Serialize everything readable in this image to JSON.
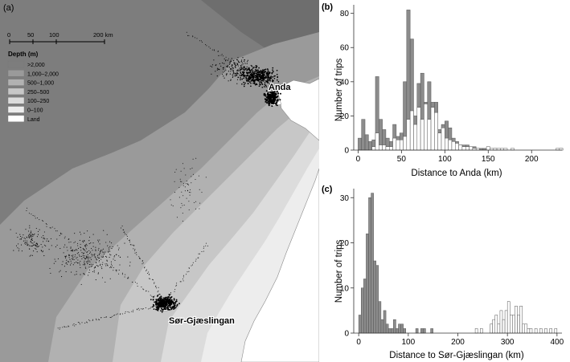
{
  "map": {
    "panel_label": "(a)",
    "scale_ticks": [
      "0",
      "50",
      "100",
      "200 km"
    ],
    "legend_title": "Depth (m)",
    "legend": [
      {
        "label": ">2,000",
        "color": "#7d7d7d"
      },
      {
        "label": "1,000–2,000",
        "color": "#9a9a9a"
      },
      {
        "label": "500–1,000",
        "color": "#b1b1b1"
      },
      {
        "label": "250–500",
        "color": "#c7c7c7"
      },
      {
        "label": "100–250",
        "color": "#dcdcdc"
      },
      {
        "label": "0–100",
        "color": "#ededed"
      },
      {
        "label": "Land",
        "color": "#ffffff"
      }
    ],
    "places": [
      "Anda",
      "Sør-Gjæslingan"
    ]
  },
  "chart_data": [
    {
      "panel_label": "(b)",
      "type": "bar",
      "xlabel": "Distance to Anda (km)",
      "ylabel": "Number of trips",
      "xlim": [
        -5,
        235
      ],
      "ylim": [
        0,
        85
      ],
      "xticks": [
        0,
        50,
        100,
        150,
        200
      ],
      "yticks": [
        0,
        20,
        40,
        60,
        80
      ],
      "bin_width": 4,
      "bin_start": 0,
      "series": [
        {
          "values": [
            7,
            18,
            9,
            5,
            6,
            43,
            18,
            12,
            7,
            5,
            15,
            8,
            10,
            40,
            82,
            65,
            20,
            39,
            45,
            28,
            40,
            28,
            28,
            12,
            15,
            17,
            13,
            7,
            5,
            3,
            3,
            3,
            2,
            2,
            1,
            1,
            1,
            0,
            0,
            1,
            0,
            0,
            0,
            0,
            0,
            0,
            0,
            0,
            0,
            0,
            0,
            0,
            0,
            0,
            0,
            0,
            0,
            0,
            1
          ]
        },
        {
          "values": [
            0,
            0,
            0,
            0,
            2,
            10,
            3,
            3,
            2,
            2,
            7,
            6,
            6,
            8,
            18,
            23,
            15,
            25,
            18,
            27,
            18,
            25,
            22,
            10,
            13,
            7,
            6,
            5,
            4,
            3,
            2,
            2,
            2,
            1,
            1,
            0,
            0,
            2,
            1,
            1,
            1,
            1,
            1,
            0,
            1,
            0,
            0,
            0,
            0,
            0,
            0,
            0,
            0,
            0,
            0,
            0,
            0,
            1,
            1
          ]
        }
      ]
    },
    {
      "panel_label": "(c)",
      "type": "bar",
      "xlabel": "Distance to Sør-Gjæslingan (km)",
      "ylabel": "Number of trips",
      "xlim": [
        -10,
        410
      ],
      "ylim": [
        0,
        32
      ],
      "xticks": [
        0,
        100,
        200,
        300,
        400
      ],
      "yticks": [
        0,
        10,
        20,
        30
      ],
      "bin_width": 5,
      "bin_start": 0,
      "series": [
        {
          "values": [
            4,
            10,
            12,
            22,
            30,
            31,
            16,
            15,
            7,
            3,
            5,
            2,
            1,
            1,
            3,
            1,
            2,
            2,
            1,
            0,
            0,
            0,
            0,
            1,
            0,
            1,
            1,
            0,
            0,
            1,
            0,
            0,
            0,
            0,
            0,
            0,
            0,
            0,
            0,
            0,
            0,
            0,
            0,
            0,
            0,
            0,
            0,
            0,
            0,
            0,
            0,
            0,
            0,
            0,
            0,
            0,
            0,
            0,
            0,
            0,
            0,
            0,
            0,
            0,
            0,
            0,
            0,
            0,
            0,
            0,
            0,
            0,
            0,
            0,
            0,
            0,
            0,
            0,
            0,
            0,
            0
          ]
        },
        {
          "values": [
            0,
            0,
            0,
            0,
            0,
            0,
            0,
            0,
            0,
            0,
            0,
            0,
            0,
            0,
            0,
            0,
            0,
            0,
            0,
            0,
            0,
            0,
            0,
            0,
            0,
            0,
            0,
            0,
            0,
            0,
            0,
            0,
            0,
            0,
            0,
            0,
            0,
            0,
            0,
            0,
            0,
            0,
            0,
            0,
            0,
            0,
            0,
            1,
            0,
            1,
            0,
            0,
            0,
            2,
            3,
            4,
            2,
            5,
            3,
            5,
            7,
            4,
            4,
            6,
            4,
            6,
            2,
            2,
            1,
            1,
            0,
            1,
            0,
            1,
            0,
            1,
            0,
            1,
            0,
            1,
            0
          ]
        }
      ]
    }
  ]
}
